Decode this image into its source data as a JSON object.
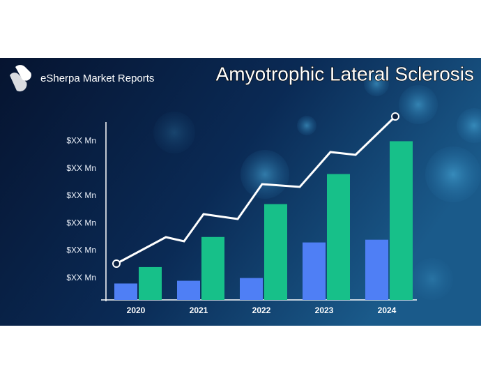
{
  "brand": "eSherpa Market Reports",
  "chart_data": {
    "type": "bar",
    "title": "Amyotrophic Lateral Sclerosis",
    "categories": [
      "2020",
      "2021",
      "2022",
      "2023",
      "2024"
    ],
    "series": [
      {
        "color": "#4f7ff5",
        "values": [
          0.8,
          0.9,
          1.0,
          2.3,
          2.4
        ]
      },
      {
        "color": "#17c089",
        "values": [
          1.4,
          2.5,
          3.7,
          4.8,
          6.0
        ]
      }
    ],
    "ylim": [
      0.2,
      6.7
    ],
    "yticks": [
      {
        "value": 1,
        "label": "$XX Mn"
      },
      {
        "value": 2,
        "label": "$XX Mn"
      },
      {
        "value": 3,
        "label": "$XX Mn"
      },
      {
        "value": 4,
        "label": "$XX Mn"
      },
      {
        "value": 5,
        "label": "$XX Mn"
      },
      {
        "value": 6,
        "label": "$XX Mn"
      }
    ]
  }
}
